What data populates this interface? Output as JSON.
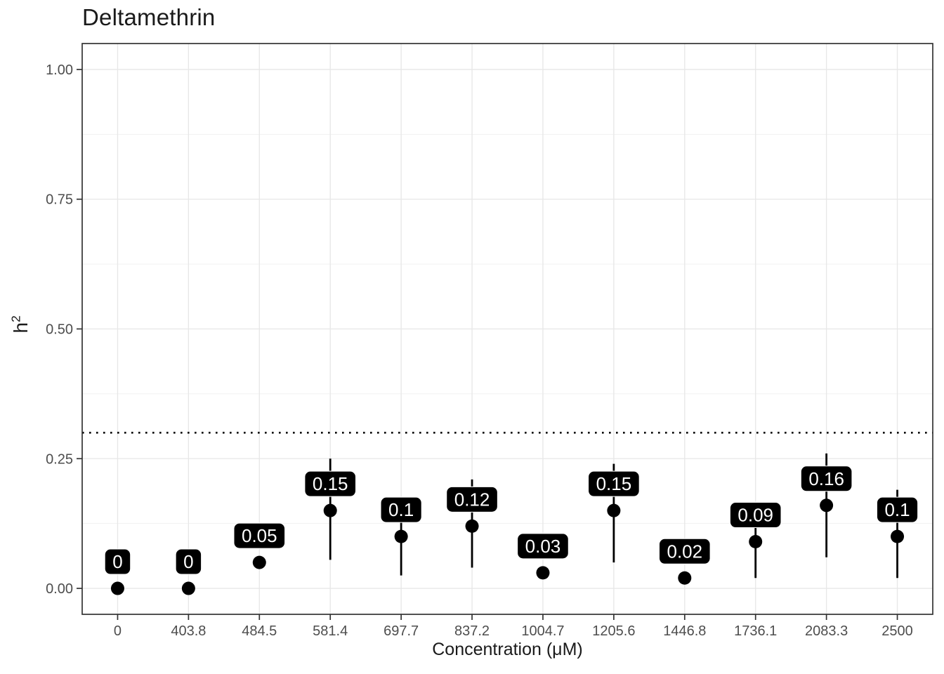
{
  "chart_data": {
    "type": "scatter",
    "subtype": "pointrange",
    "title": "Deltamethrin",
    "xlabel": "Concentration (μM)",
    "ylabel": "h²",
    "ylabel_base": "h",
    "ylabel_sup": "2",
    "legend": "none",
    "grid": true,
    "x_categories": [
      "0",
      "403.8",
      "484.5",
      "581.4",
      "697.7",
      "837.2",
      "1004.7",
      "1205.6",
      "1446.8",
      "1736.1",
      "2083.3",
      "2500"
    ],
    "points": [
      {
        "x": "0",
        "value": 0.0,
        "label": "0",
        "lower": 0.0,
        "upper": 0.0
      },
      {
        "x": "403.8",
        "value": 0.0,
        "label": "0",
        "lower": 0.0,
        "upper": 0.0
      },
      {
        "x": "484.5",
        "value": 0.05,
        "label": "0.05",
        "lower": 0.05,
        "upper": 0.05
      },
      {
        "x": "581.4",
        "value": 0.15,
        "label": "0.15",
        "lower": 0.055,
        "upper": 0.25
      },
      {
        "x": "697.7",
        "value": 0.1,
        "label": "0.1",
        "lower": 0.025,
        "upper": 0.17
      },
      {
        "x": "837.2",
        "value": 0.12,
        "label": "0.12",
        "lower": 0.04,
        "upper": 0.21
      },
      {
        "x": "1004.7",
        "value": 0.03,
        "label": "0.03",
        "lower": 0.03,
        "upper": 0.03
      },
      {
        "x": "1205.6",
        "value": 0.15,
        "label": "0.15",
        "lower": 0.05,
        "upper": 0.24
      },
      {
        "x": "1446.8",
        "value": 0.02,
        "label": "0.02",
        "lower": 0.02,
        "upper": 0.02
      },
      {
        "x": "1736.1",
        "value": 0.09,
        "label": "0.09",
        "lower": 0.02,
        "upper": 0.15
      },
      {
        "x": "2083.3",
        "value": 0.16,
        "label": "0.16",
        "lower": 0.06,
        "upper": 0.26
      },
      {
        "x": "2500",
        "value": 0.1,
        "label": "0.1",
        "lower": 0.02,
        "upper": 0.19
      }
    ],
    "y_axis": {
      "range": [
        -0.05,
        1.05
      ],
      "ticks": [
        {
          "value": 0.0,
          "label": "0.00"
        },
        {
          "value": 0.25,
          "label": "0.25"
        },
        {
          "value": 0.5,
          "label": "0.50"
        },
        {
          "value": 0.75,
          "label": "0.75"
        },
        {
          "value": 1.0,
          "label": "1.00"
        }
      ],
      "minor": [
        0.125,
        0.375,
        0.625,
        0.875
      ]
    },
    "reference_line": {
      "y": 0.3,
      "style": "dotted",
      "color": "#000000"
    },
    "colors": {
      "point": "#000000",
      "errorbar": "#000000",
      "label_bg": "#000000",
      "label_text": "#ffffff",
      "grid_major": "#e7e7e7",
      "grid_minor": "#f1f1f1",
      "panel_border": "#333333",
      "tick_mark": "#333333",
      "axis_text": "#4d4d4d",
      "background": "#ffffff"
    }
  }
}
